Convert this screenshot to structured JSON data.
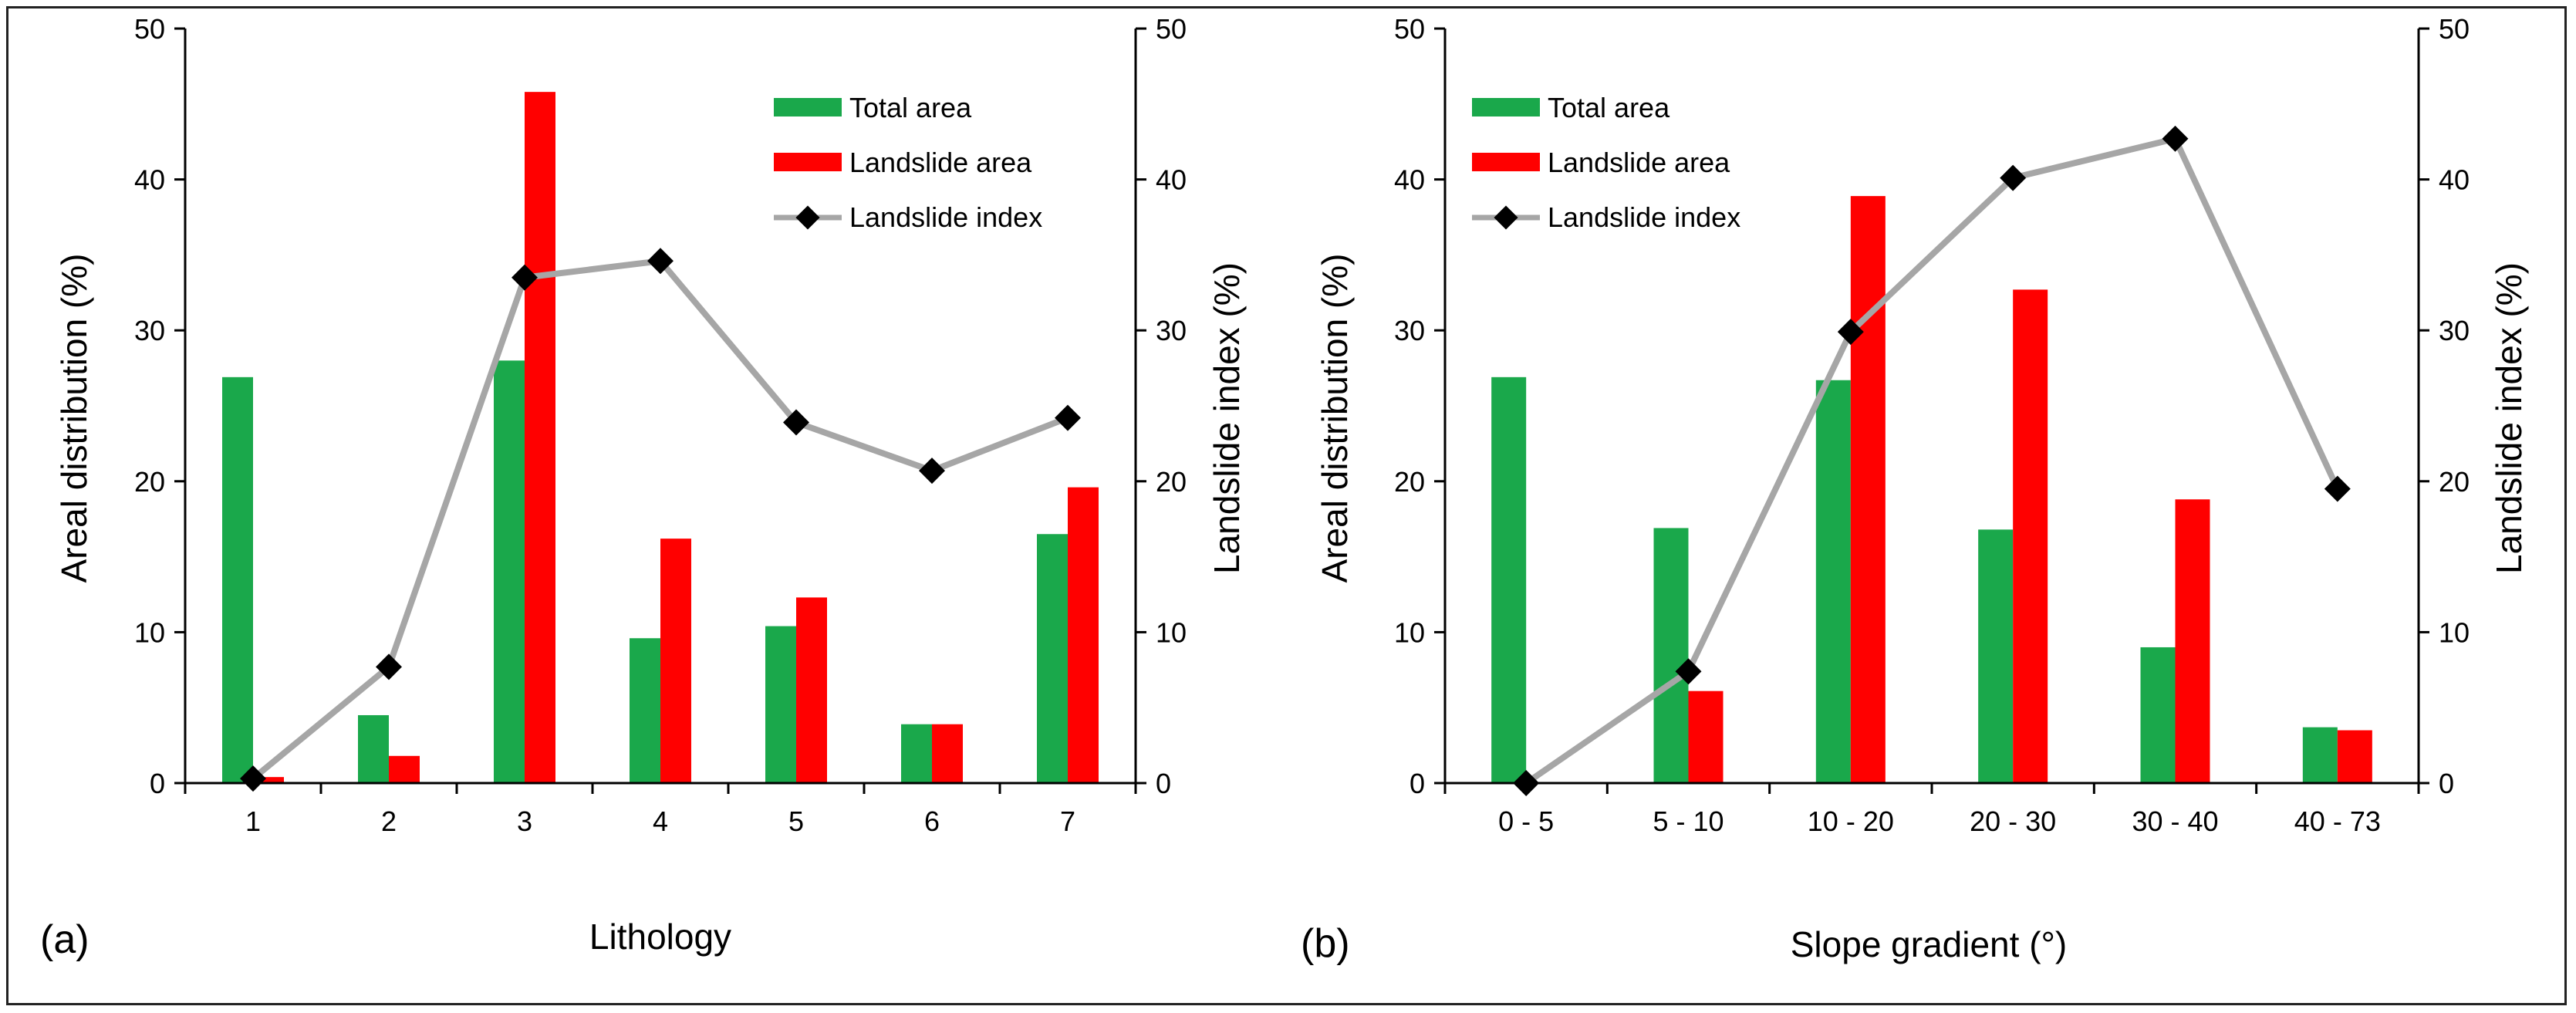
{
  "colors": {
    "total_area": "#1aa84b",
    "landslide_area": "#ff0000",
    "landslide_index_line": "#a6a6a6",
    "landslide_index_marker": "#000000",
    "axis": "#000000"
  },
  "legend": {
    "total_area": "Total area",
    "landslide_area": "Landslide area",
    "landslide_index": "Landslide index"
  },
  "chart_data": [
    {
      "type": "bar",
      "panel_label": "(a)",
      "xlabel": "Lithology",
      "ylabel": "Areal distribution (%)",
      "y2label": "Landslide index (%)",
      "ylim": [
        0,
        50
      ],
      "y2lim": [
        0,
        50
      ],
      "yticks": [
        "0",
        "10",
        "20",
        "30",
        "40",
        "50"
      ],
      "y2ticks": [
        "0",
        "10",
        "20",
        "30",
        "40",
        "50"
      ],
      "categories": [
        "1",
        "2",
        "3",
        "4",
        "5",
        "6",
        "7"
      ],
      "series": [
        {
          "name": "Total area",
          "kind": "bar",
          "values": [
            26.9,
            4.5,
            28.0,
            9.6,
            10.4,
            3.9,
            16.5
          ]
        },
        {
          "name": "Landslide area",
          "kind": "bar",
          "values": [
            0.4,
            1.8,
            45.8,
            16.2,
            12.3,
            3.9,
            19.6
          ]
        },
        {
          "name": "Landslide index",
          "kind": "line",
          "axis": "right",
          "values": [
            0.3,
            7.7,
            33.5,
            34.6,
            23.9,
            20.7,
            24.2
          ]
        }
      ],
      "legend_position": "top-right"
    },
    {
      "type": "bar",
      "panel_label": "(b)",
      "xlabel": "Slope gradient (°)",
      "ylabel": "Areal distribution (%)",
      "y2label": "Landslide index (%)",
      "ylim": [
        0,
        50
      ],
      "y2lim": [
        0,
        50
      ],
      "yticks": [
        "0",
        "10",
        "20",
        "30",
        "40",
        "50"
      ],
      "y2ticks": [
        "0",
        "10",
        "20",
        "30",
        "40",
        "50"
      ],
      "categories": [
        "0 - 5",
        "5 - 10",
        "10 - 20",
        "20 - 30",
        "30 - 40",
        "40 - 73"
      ],
      "series": [
        {
          "name": "Total area",
          "kind": "bar",
          "values": [
            26.9,
            16.9,
            26.7,
            16.8,
            9.0,
            3.7
          ]
        },
        {
          "name": "Landslide area",
          "kind": "bar",
          "values": [
            0.0,
            6.1,
            38.9,
            32.7,
            18.8,
            3.5
          ]
        },
        {
          "name": "Landslide index",
          "kind": "line",
          "axis": "right",
          "values": [
            0.0,
            7.4,
            29.9,
            40.1,
            42.7,
            19.5
          ]
        }
      ],
      "legend_position": "top-left"
    }
  ]
}
